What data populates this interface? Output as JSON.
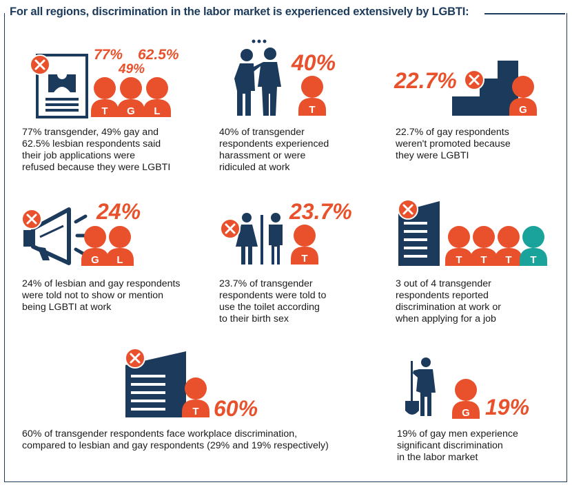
{
  "header": {
    "title": "For all regions, discrimination in the labor market is experienced extensively by LGBTI:"
  },
  "colors": {
    "accent": "#e8512b",
    "navy": "#1b3a5c",
    "teal": "#1aa39a"
  },
  "stats": [
    {
      "figures": [
        "77%",
        "49%",
        "62.5%"
      ],
      "labels": [
        "T",
        "G",
        "L"
      ],
      "caption": "77% transgender, 49% gay and\n62.5% lesbian respondents said\ntheir job applications were\nrefused because they were LGBTI",
      "icon": "job-application-icon"
    },
    {
      "figures": [
        "40%"
      ],
      "labels": [
        "T"
      ],
      "caption": "40% of transgender\nrespondents experienced\nharassment or were\nridiculed at work",
      "icon": "harassment-icon"
    },
    {
      "figures": [
        "22.7%"
      ],
      "labels": [
        "G"
      ],
      "caption": "22.7% of gay respondents\nweren't promoted because\nthey were LGBTI",
      "icon": "promotion-stairs-icon"
    },
    {
      "figures": [
        "24%"
      ],
      "labels": [
        "G",
        "L"
      ],
      "caption": "24% of lesbian and gay respondents\nwere told not to show or mention\nbeing LGBTI at work",
      "icon": "megaphone-icon"
    },
    {
      "figures": [
        "23.7%"
      ],
      "labels": [
        "T"
      ],
      "caption": "23.7% of transgender\nrespondents were told to\nuse the toilet according\nto their birth sex",
      "icon": "toilet-icon"
    },
    {
      "figures": [],
      "labels": [
        "T",
        "T",
        "T",
        "T"
      ],
      "caption": "3 out of 4 transgender\nrespondents reported\ndiscrimination at work or\nwhen applying for a job",
      "icon": "office-building-icon"
    },
    {
      "figures": [
        "60%"
      ],
      "labels": [
        "T"
      ],
      "caption": "60% of transgender respondents face workplace discrimination,\ncompared to lesbian and gay respondents (29% and 19% respectively)",
      "icon": "office-building-icon"
    },
    {
      "figures": [
        "19%"
      ],
      "labels": [
        "G"
      ],
      "caption": "19% of gay men experience\nsignificant discrimination\nin the labor market",
      "icon": "worker-shovel-icon"
    }
  ]
}
